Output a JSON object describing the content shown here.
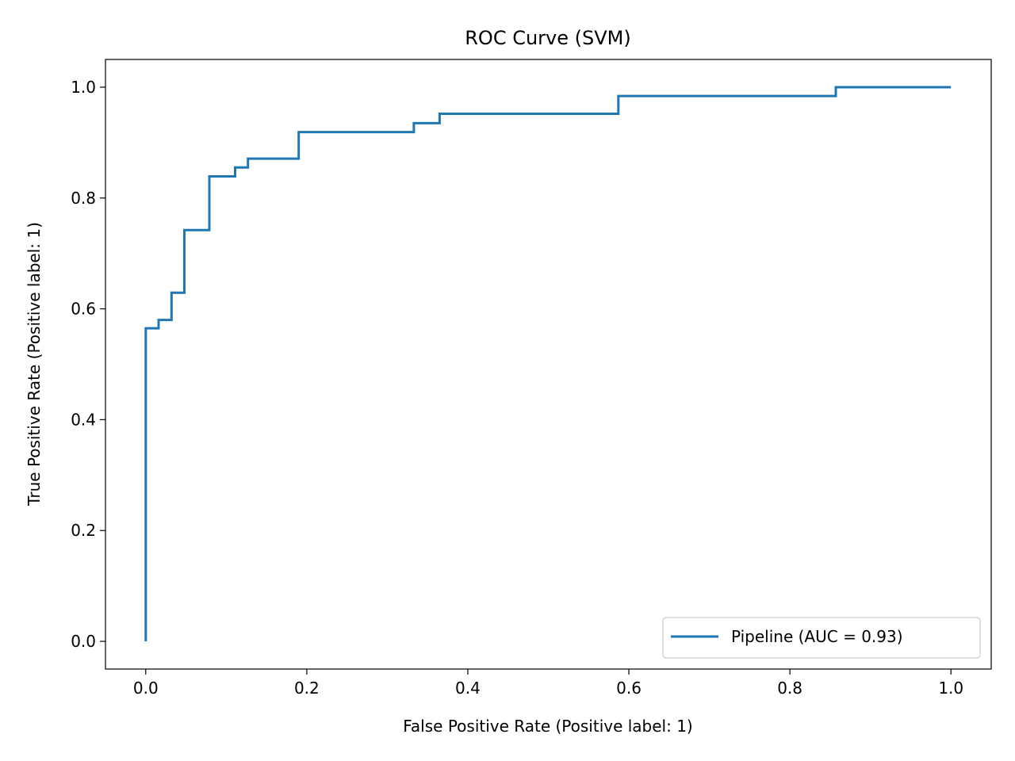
{
  "chart_data": {
    "type": "line",
    "title": "ROC Curve (SVM)",
    "xlabel": "False Positive Rate (Positive label: 1)",
    "ylabel": "True Positive Rate (Positive label: 1)",
    "xlim": [
      -0.05,
      1.05
    ],
    "ylim": [
      -0.05,
      1.05
    ],
    "xticks": [
      0.0,
      0.2,
      0.4,
      0.6,
      0.8,
      1.0
    ],
    "yticks": [
      0.0,
      0.2,
      0.4,
      0.6,
      0.8,
      1.0
    ],
    "xtick_labels": [
      "0.0",
      "0.2",
      "0.4",
      "0.6",
      "0.8",
      "1.0"
    ],
    "ytick_labels": [
      "0.0",
      "0.2",
      "0.4",
      "0.6",
      "0.8",
      "1.0"
    ],
    "grid": false,
    "legend": {
      "placement": "lower-right",
      "entries": [
        "Pipeline (AUC = 0.93)"
      ]
    },
    "series": [
      {
        "name": "Pipeline (AUC = 0.93)",
        "color": "#1f77b4",
        "step": true,
        "x": [
          0.0,
          0.0,
          0.016,
          0.016,
          0.032,
          0.032,
          0.048,
          0.048,
          0.079,
          0.079,
          0.111,
          0.111,
          0.127,
          0.127,
          0.19,
          0.19,
          0.333,
          0.333,
          0.365,
          0.365,
          0.587,
          0.587,
          0.857,
          0.857,
          1.0
        ],
        "y": [
          0.0,
          0.565,
          0.565,
          0.58,
          0.58,
          0.629,
          0.629,
          0.742,
          0.742,
          0.839,
          0.839,
          0.855,
          0.855,
          0.871,
          0.871,
          0.919,
          0.919,
          0.935,
          0.935,
          0.952,
          0.952,
          0.984,
          0.984,
          1.0,
          1.0
        ]
      }
    ]
  }
}
